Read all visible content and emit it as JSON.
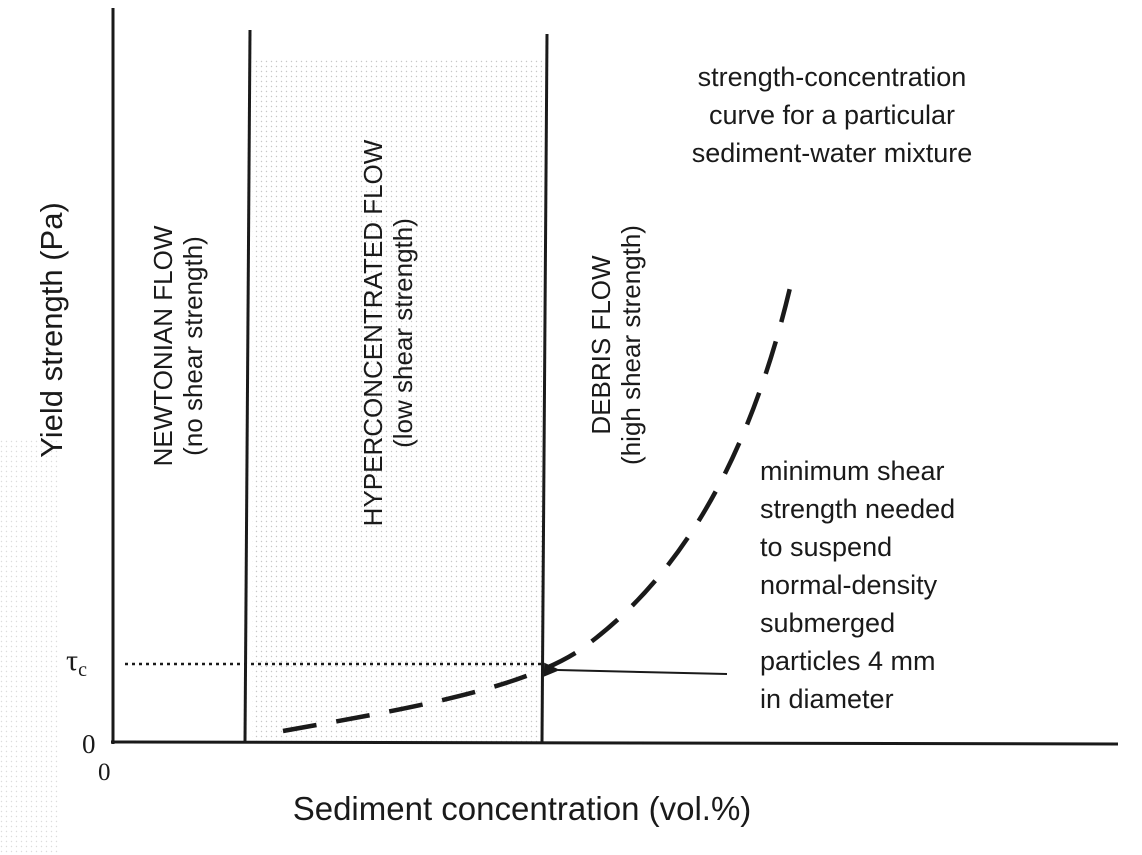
{
  "axes": {
    "y_label": "Yield strength (Pa)",
    "x_label": "Sediment concentration (vol.%)",
    "y_origin": "0",
    "x_origin": "0",
    "tau_symbol": "τ",
    "tau_subscript": "c"
  },
  "zones": [
    {
      "line1": "NEWTONIAN FLOW",
      "line2": "(no shear strength)",
      "shaded": false
    },
    {
      "line1": "HYPERCONCENTRATED FLOW",
      "line2": "(low shear strength)",
      "shaded": true
    },
    {
      "line1": "DEBRIS FLOW",
      "line2": "(high shear strength)",
      "shaded": false
    }
  ],
  "annotations": {
    "curve_note": [
      "strength-concentration",
      "curve for a particular",
      "sediment-water mixture"
    ],
    "threshold_note": [
      "minimum shear",
      "strength needed",
      "to suspend",
      "normal-density",
      "submerged",
      "particles 4 mm",
      "in diameter"
    ]
  },
  "colors": {
    "ink": "#1a1a1a",
    "shade_dot": "#9a9a9a"
  }
}
